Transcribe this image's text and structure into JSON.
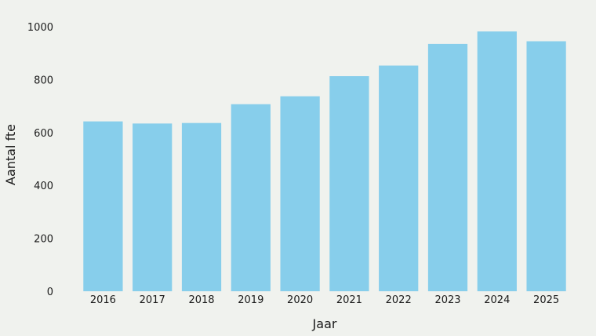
{
  "chart_data": {
    "type": "bar",
    "categories": [
      "2016",
      "2017",
      "2018",
      "2019",
      "2020",
      "2021",
      "2022",
      "2023",
      "2024",
      "2025"
    ],
    "values": [
      642,
      634,
      636,
      707,
      737,
      813,
      853,
      935,
      982,
      945
    ],
    "xlabel": "Jaar",
    "ylabel": "Aantal fte",
    "ylim": [
      0,
      1000
    ],
    "yticks": [
      0,
      200,
      400,
      600,
      800,
      1000
    ],
    "bar_color": "#87ceeb",
    "grid": false
  }
}
